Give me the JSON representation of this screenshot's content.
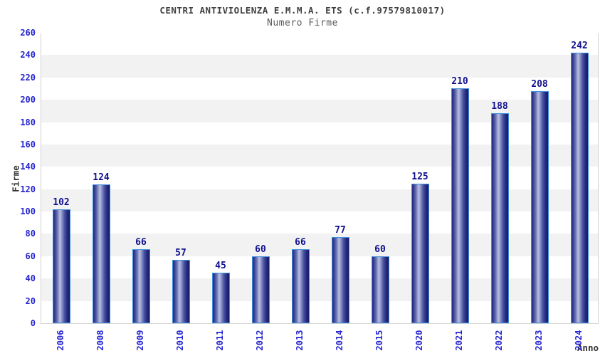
{
  "chart_data": {
    "type": "bar",
    "title": "CENTRI ANTIVIOLENZA E.M.M.A. ETS (c.f.97579810017)",
    "subtitle": "Numero Firme",
    "xlabel": "Anno",
    "ylabel": "Firme",
    "categories": [
      "2006",
      "2008",
      "2009",
      "2010",
      "2011",
      "2012",
      "2013",
      "2014",
      "2015",
      "2020",
      "2021",
      "2022",
      "2023",
      "2024"
    ],
    "values": [
      102,
      124,
      66,
      57,
      45,
      60,
      66,
      77,
      60,
      125,
      210,
      188,
      208,
      242
    ],
    "ylim": [
      0,
      260
    ],
    "ytick_step": 20,
    "grid": "alternating-horizontal-bands",
    "legend": "none",
    "colors": {
      "bar_dark": "#23287f",
      "bar_darkest": "#171b62",
      "bar_highlight": "#b9bfe0",
      "bar_border": "#3d8fe0",
      "tick_label": "#2626cf",
      "value_label": "#10108e",
      "band_gray": "#f2f2f2",
      "band_white": "#ffffff",
      "plot_border": "#d2d2d2",
      "title_color": "#3f3f3f",
      "subtitle_color": "#5a5a5a",
      "axis_title_color": "#333333"
    }
  }
}
